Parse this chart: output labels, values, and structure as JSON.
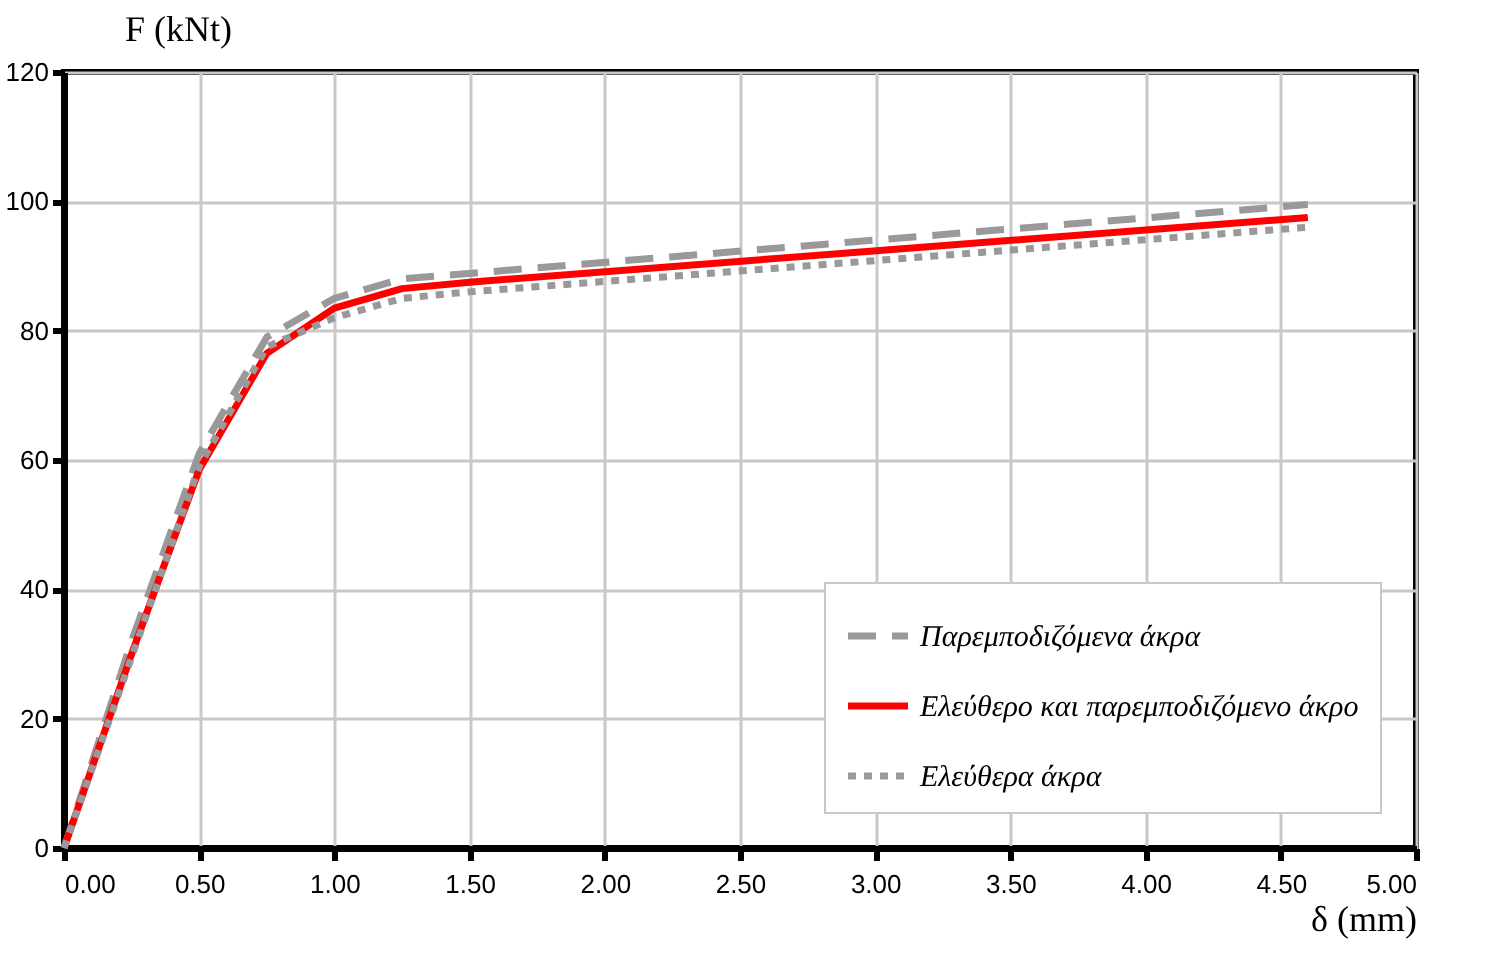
{
  "chart_data": {
    "type": "line",
    "xlabel": "δ (mm)",
    "ylabel": "F (kNt)",
    "xlim": [
      0,
      5
    ],
    "ylim": [
      0,
      120
    ],
    "xticks": [
      {
        "value": 0,
        "label": "0.00"
      },
      {
        "value": 0.5,
        "label": "0.50"
      },
      {
        "value": 1,
        "label": "1.00"
      },
      {
        "value": 1.5,
        "label": "1.50"
      },
      {
        "value": 2,
        "label": "2.00"
      },
      {
        "value": 2.5,
        "label": "2.50"
      },
      {
        "value": 3,
        "label": "3.00"
      },
      {
        "value": 3.5,
        "label": "3.50"
      },
      {
        "value": 4,
        "label": "4.00"
      },
      {
        "value": 4.5,
        "label": "4.50"
      },
      {
        "value": 5,
        "label": "5.00"
      }
    ],
    "yticks": [
      0,
      20,
      40,
      60,
      80,
      100,
      120
    ],
    "grid": true,
    "legend": "bottom right",
    "marker": "none",
    "series": [
      {
        "name": "Παρεμποδιζόμενα άκρα",
        "color": "#999999",
        "line_style": "dashed",
        "x": [
          0,
          0.25,
          0.5,
          0.75,
          1.0,
          1.25,
          4.6
        ],
        "values": [
          0,
          32,
          61,
          79,
          85,
          88,
          99.5
        ]
      },
      {
        "name": "Ελεύθερο και παρεμποδιζόμενο άκρο",
        "color": "#ff0000",
        "line_style": "solid",
        "x": [
          0,
          0.25,
          0.5,
          0.75,
          1.0,
          1.25,
          1.5,
          4.6
        ],
        "values": [
          0,
          30,
          58.5,
          76.5,
          83.5,
          86.5,
          87.5,
          97.5
        ]
      },
      {
        "name": "Ελεύθερα άκρα",
        "color": "#999999",
        "line_style": "dotted",
        "x": [
          0,
          0.5,
          0.75,
          1.0,
          1.25,
          1.5,
          4.6
        ],
        "values": [
          0,
          59,
          77.5,
          82,
          85,
          86,
          96
        ]
      }
    ]
  }
}
